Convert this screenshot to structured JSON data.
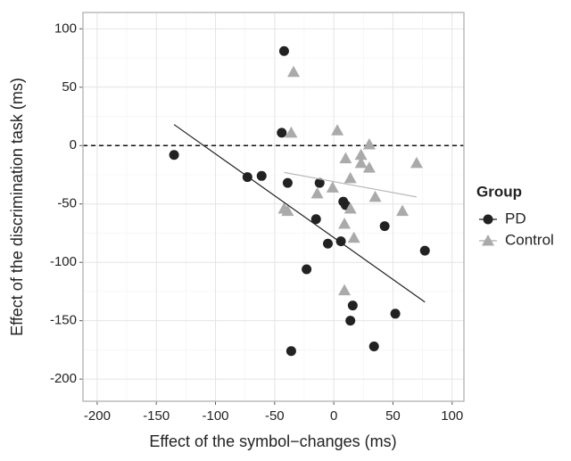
{
  "chart_data": {
    "type": "scatter",
    "xlabel": "Effect of the symbol−changes (ms)",
    "ylabel": "Effect of the discrimination task (ms)",
    "xlim": [
      -212,
      110
    ],
    "ylim": [
      -219,
      114
    ],
    "xticks": [
      -200,
      -150,
      -100,
      -50,
      0,
      50,
      100
    ],
    "yticks": [
      -200,
      -150,
      -100,
      -50,
      0,
      50,
      100
    ],
    "grid": true,
    "hline": 0,
    "legend_title": "Group",
    "legend_position": "right",
    "series": [
      {
        "name": "PD",
        "color": "#222222",
        "marker": "circle",
        "x": [
          -42,
          -135,
          -44,
          -73,
          -61,
          -39,
          -12,
          -15,
          8,
          10,
          -5,
          6,
          43,
          77,
          -23,
          16,
          14,
          52,
          34,
          -36
        ],
        "values": [
          81,
          -8,
          11,
          -27,
          -26,
          -32,
          -32,
          -63,
          -48,
          -51,
          -84,
          -82,
          -69,
          -90,
          -106,
          -137,
          -150,
          -144,
          -172,
          -176
        ],
        "fit": {
          "x": [
            -135,
            77
          ],
          "values": [
            18,
            -134
          ]
        }
      },
      {
        "name": "Control",
        "color": "#aaaaaa",
        "marker": "triangle",
        "x": [
          -34,
          -36,
          3,
          30,
          23,
          10,
          30,
          23,
          70,
          14,
          -1,
          -14,
          35,
          -42,
          -39,
          14,
          58,
          9,
          17,
          9
        ],
        "values": [
          63,
          11,
          13,
          1,
          -8,
          -11,
          -19,
          -15,
          -15,
          -28,
          -36,
          -41,
          -44,
          -54,
          -56,
          -54,
          -56,
          -67,
          -79,
          -124
        ],
        "fit": {
          "x": [
            -42,
            70
          ],
          "values": [
            -23,
            -44
          ]
        }
      }
    ]
  }
}
